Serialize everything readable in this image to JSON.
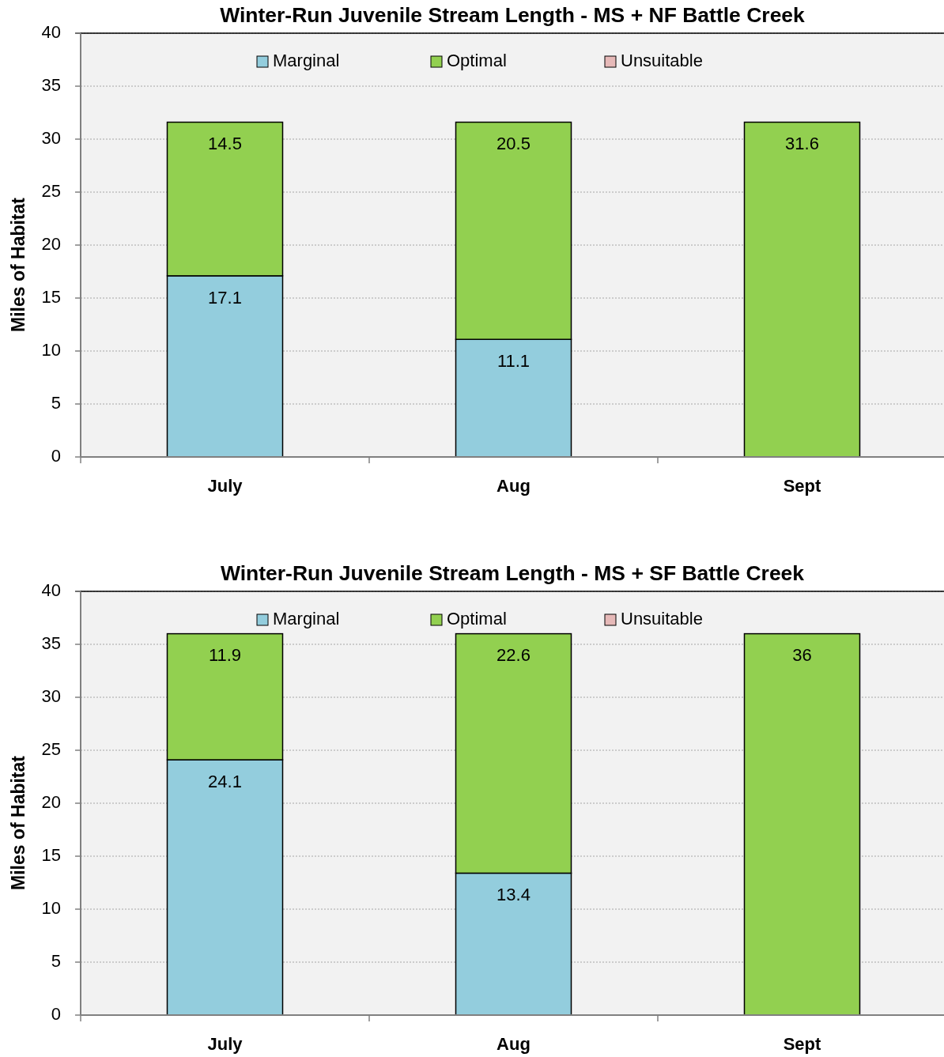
{
  "chart_data": [
    {
      "type": "bar",
      "title": "Winter-Run Juvenile Stream Length - MS + NF Battle Creek",
      "ylabel": "Miles of Habitat",
      "categories": [
        "July",
        "Aug",
        "Sept"
      ],
      "stacked": true,
      "series": [
        {
          "name": "Marginal",
          "color": "#93cddd",
          "values": [
            17.1,
            11.1,
            null
          ]
        },
        {
          "name": "Optimal",
          "color": "#92d050",
          "values": [
            14.5,
            20.5,
            31.6
          ]
        },
        {
          "name": "Unsuitable",
          "color": "#e6b9b8",
          "values": [
            null,
            null,
            null
          ]
        }
      ],
      "ylim": [
        0,
        40
      ],
      "yticks": [
        0,
        5,
        10,
        15,
        20,
        25,
        30,
        35,
        40
      ],
      "grid": "y",
      "legend": "top",
      "data_labels": true
    },
    {
      "type": "bar",
      "title": "Winter-Run Juvenile Stream Length - MS + SF Battle Creek",
      "ylabel": "Miles of Habitat",
      "categories": [
        "July",
        "Aug",
        "Sept"
      ],
      "stacked": true,
      "series": [
        {
          "name": "Marginal",
          "color": "#93cddd",
          "values": [
            24.1,
            13.4,
            null
          ]
        },
        {
          "name": "Optimal",
          "color": "#92d050",
          "values": [
            11.9,
            22.6,
            36
          ]
        },
        {
          "name": "Unsuitable",
          "color": "#e6b9b8",
          "values": [
            null,
            null,
            null
          ]
        }
      ],
      "ylim": [
        0,
        40
      ],
      "yticks": [
        0,
        5,
        10,
        15,
        20,
        25,
        30,
        35,
        40
      ],
      "grid": "y",
      "legend": "top",
      "data_labels": true
    }
  ]
}
